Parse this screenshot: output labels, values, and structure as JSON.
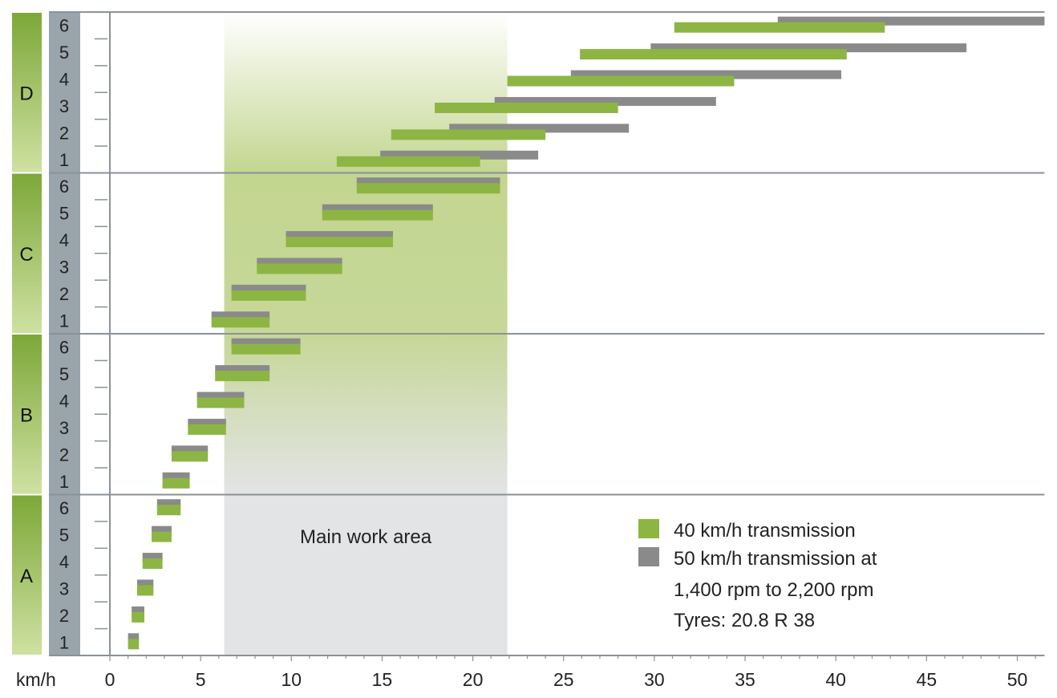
{
  "chart_data": {
    "type": "range-bar",
    "xlabel": "km/h",
    "xlim": [
      0,
      51.5
    ],
    "x_ticks": [
      "0",
      "5",
      "10",
      "15",
      "20",
      "25",
      "30",
      "35",
      "40",
      "45",
      "50"
    ],
    "gears": [
      "1",
      "2",
      "3",
      "4",
      "5",
      "6"
    ],
    "ranges": [
      "A",
      "B",
      "C",
      "D"
    ],
    "main_work_area": {
      "label": "Main work area",
      "from": 6.3,
      "to": 21.9
    },
    "legend": {
      "green": "40 km/h transmission",
      "grey_line1": "50 km/h transmission at",
      "grey_line2": "1,400 rpm to 2,200 rpm",
      "note": "Tyres: 20.8 R 38"
    },
    "colors": {
      "green": "#8db543",
      "grey": "#8a8a8a",
      "work_area": "#e3e4e6",
      "work_area_green": "#bfd48c",
      "range_strip_dark": "#7da838",
      "range_strip_light": "#cfe1a2",
      "gear_strip": "#9aa4ab",
      "grid": "#8a9298"
    },
    "series": [
      {
        "name": "40 km/h transmission",
        "color": "green",
        "bars": {
          "A": [
            [
              1.0,
              1.6
            ],
            [
              1.2,
              1.9
            ],
            [
              1.5,
              2.4
            ],
            [
              1.8,
              2.9
            ],
            [
              2.3,
              3.4
            ],
            [
              2.6,
              3.9
            ]
          ],
          "B": [
            [
              2.9,
              4.4
            ],
            [
              3.4,
              5.4
            ],
            [
              4.3,
              6.4
            ],
            [
              4.8,
              7.4
            ],
            [
              5.8,
              8.8
            ],
            [
              6.7,
              10.5
            ]
          ],
          "C": [
            [
              5.6,
              8.8
            ],
            [
              6.7,
              10.8
            ],
            [
              8.1,
              12.8
            ],
            [
              9.7,
              15.6
            ],
            [
              11.7,
              17.8
            ],
            [
              13.6,
              21.5
            ]
          ],
          "D": [
            [
              12.5,
              20.4
            ],
            [
              15.5,
              24.0
            ],
            [
              17.9,
              28.0
            ],
            [
              21.9,
              34.4
            ],
            [
              25.9,
              40.6
            ],
            [
              31.1,
              42.7
            ]
          ]
        }
      },
      {
        "name": "50 km/h transmission at 1,400 rpm to 2,200 rpm",
        "color": "grey",
        "bars": {
          "A": [
            [
              1.0,
              1.6
            ],
            [
              1.2,
              1.9
            ],
            [
              1.5,
              2.4
            ],
            [
              1.8,
              2.9
            ],
            [
              2.3,
              3.4
            ],
            [
              2.6,
              3.9
            ]
          ],
          "B": [
            [
              2.9,
              4.4
            ],
            [
              3.4,
              5.4
            ],
            [
              4.3,
              6.4
            ],
            [
              4.8,
              7.4
            ],
            [
              5.8,
              8.8
            ],
            [
              6.7,
              10.5
            ]
          ],
          "C": [
            [
              5.6,
              8.8
            ],
            [
              6.7,
              10.8
            ],
            [
              8.1,
              12.8
            ],
            [
              9.7,
              15.6
            ],
            [
              11.7,
              17.8
            ],
            [
              13.6,
              21.5
            ]
          ],
          "D": [
            [
              14.9,
              23.6
            ],
            [
              18.7,
              28.6
            ],
            [
              21.2,
              33.4
            ],
            [
              25.4,
              40.3
            ],
            [
              29.8,
              47.2
            ],
            [
              36.8,
              51.5
            ]
          ]
        }
      }
    ]
  }
}
